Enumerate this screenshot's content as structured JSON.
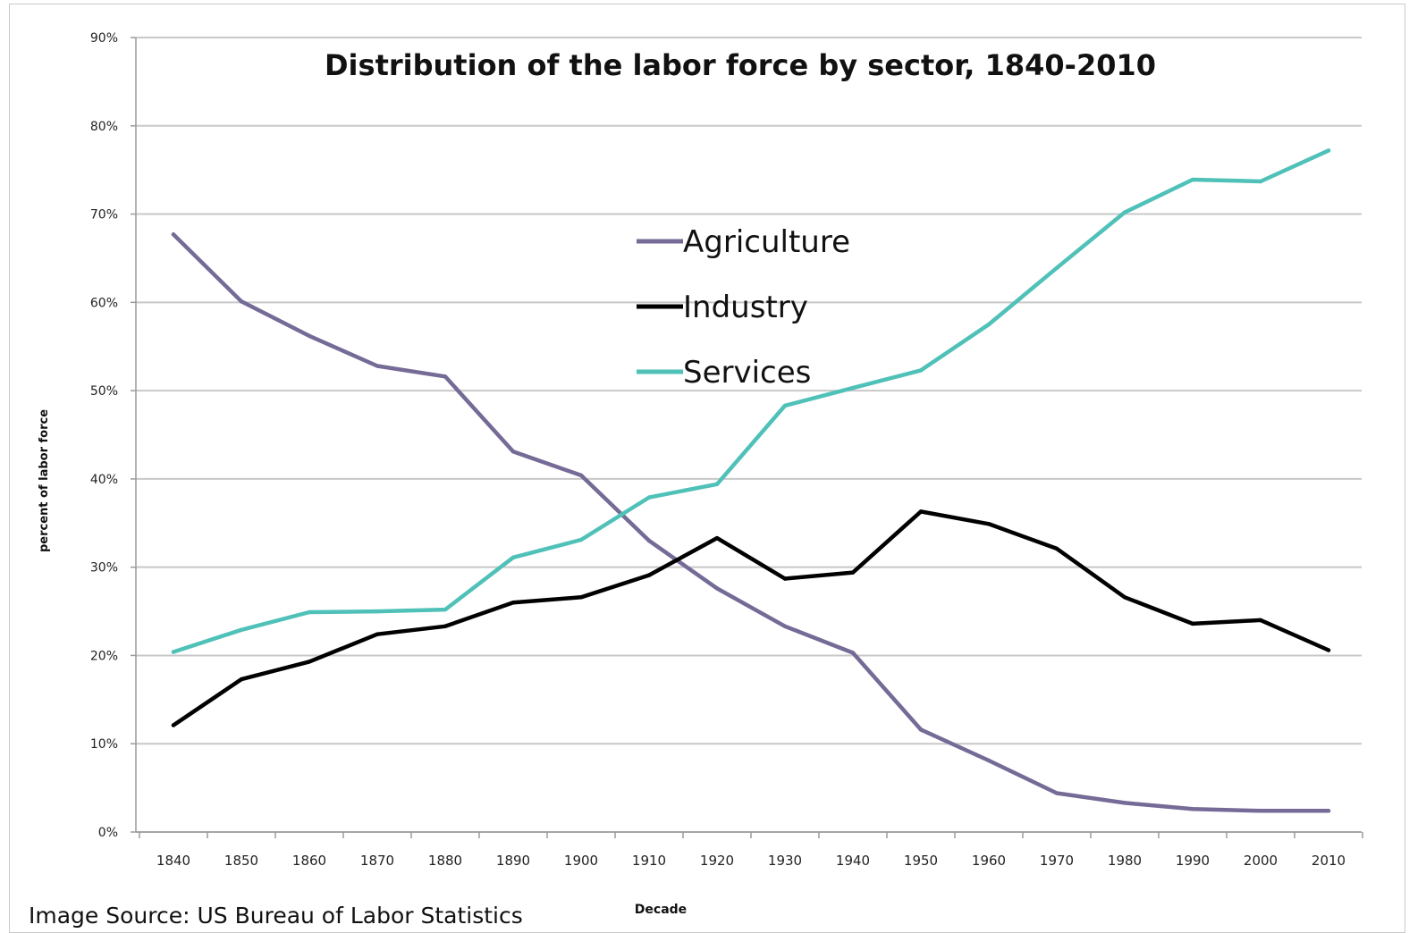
{
  "chart_data": {
    "type": "line",
    "title": "Distribution of the labor force by sector, 1840-2010",
    "xlabel": "Decade",
    "ylabel": "percent of labor force",
    "x": [
      1840,
      1850,
      1860,
      1870,
      1880,
      1890,
      1900,
      1910,
      1920,
      1930,
      1940,
      1950,
      1960,
      1970,
      1980,
      1990,
      2000,
      2010
    ],
    "x_tick_labels": [
      "1840",
      "1850",
      "1860",
      "1870",
      "1880",
      "1890",
      "1900",
      "1910",
      "1920",
      "1930",
      "1940",
      "1950",
      "1960",
      "1970",
      "1980",
      "1990",
      "2000",
      "2010"
    ],
    "y_ticks": [
      0,
      10,
      20,
      30,
      40,
      50,
      60,
      70,
      80,
      90
    ],
    "y_tick_labels": [
      "0%",
      "10%",
      "20%",
      "30%",
      "40%",
      "50%",
      "60%",
      "70%",
      "80%",
      "90%"
    ],
    "ylim": [
      0,
      90
    ],
    "grid": "horizontal",
    "legend_position": "center-top",
    "series": [
      {
        "name": "Agriculture",
        "color": "#756b96",
        "values": [
          67.7,
          60.1,
          56.2,
          52.8,
          51.6,
          43.1,
          40.4,
          33.0,
          27.6,
          23.3,
          20.3,
          11.6,
          8.1,
          4.4,
          3.3,
          2.6,
          2.4,
          2.4
        ]
      },
      {
        "name": "Industry",
        "color": "#000000",
        "values": [
          12.1,
          17.3,
          19.3,
          22.4,
          23.3,
          26.0,
          26.6,
          29.1,
          33.3,
          28.7,
          29.4,
          36.3,
          34.9,
          32.1,
          26.6,
          23.6,
          24.0,
          20.6
        ]
      },
      {
        "name": "Services",
        "color": "#4fc1b8",
        "values": [
          20.4,
          22.9,
          24.9,
          25.0,
          25.2,
          31.1,
          33.1,
          37.9,
          39.4,
          48.3,
          50.3,
          52.3,
          57.5,
          63.9,
          70.2,
          73.9,
          73.7,
          77.2
        ]
      }
    ]
  },
  "source_note": "Image Source: US Bureau of Labor Statistics"
}
